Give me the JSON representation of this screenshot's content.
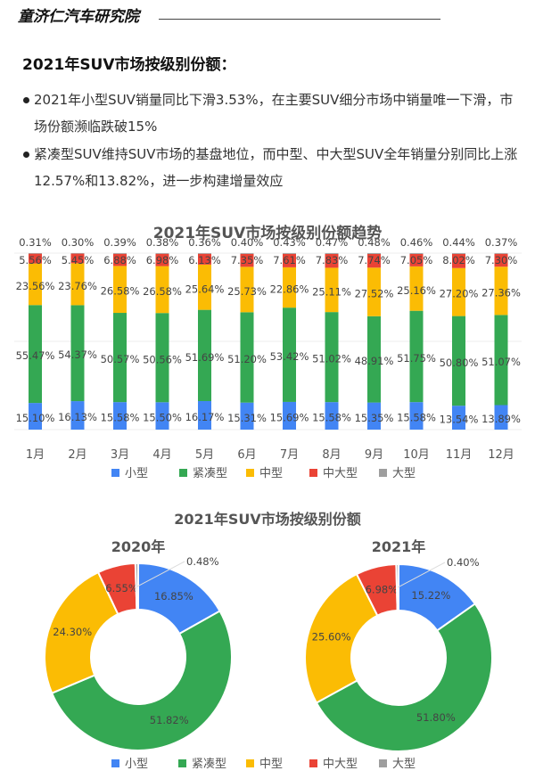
{
  "header": {
    "brand": "童济仁汽车研究院"
  },
  "section": {
    "title": "2021年SUV市场按级别份额：",
    "bullets": [
      "2021年小型SUV销量同比下滑3.53%，在主要SUV细分市场中销量唯一下滑，市场份额濒临跌破15%",
      "紧凑型SUV维持SUV市场的基盘地位，而中型、中大型SUV全年销量分别同比上涨12.57%和13.82%，进一步构建增量效应"
    ]
  },
  "colors": {
    "小型": "#4285F4",
    "紧凑型": "#34A853",
    "中型": "#FBBC04",
    "中大型": "#EA4335",
    "大型": "#9E9E9E"
  },
  "chart_data": [
    {
      "type": "bar",
      "stacked": true,
      "percent": true,
      "title": "2021年SUV市场按级别份额趋势",
      "categories": [
        "1月",
        "2月",
        "3月",
        "4月",
        "5月",
        "6月",
        "7月",
        "8月",
        "9月",
        "10月",
        "11月",
        "12月"
      ],
      "series": [
        {
          "name": "小型",
          "values": [
            15.1,
            16.13,
            15.58,
            15.5,
            16.17,
            15.31,
            15.69,
            15.58,
            15.35,
            15.58,
            13.54,
            13.89
          ]
        },
        {
          "name": "紧凑型",
          "values": [
            55.47,
            54.37,
            50.57,
            50.56,
            51.69,
            51.2,
            53.42,
            51.02,
            48.91,
            51.75,
            50.8,
            51.07
          ]
        },
        {
          "name": "中型",
          "values": [
            23.56,
            23.76,
            26.58,
            26.58,
            25.64,
            25.73,
            22.86,
            25.11,
            27.52,
            25.16,
            27.2,
            27.36
          ]
        },
        {
          "name": "中大型",
          "values": [
            5.56,
            5.45,
            6.88,
            6.98,
            6.13,
            7.35,
            7.61,
            7.83,
            7.74,
            7.05,
            8.02,
            7.3
          ]
        },
        {
          "name": "大型",
          "values": [
            0.31,
            0.3,
            0.39,
            0.38,
            0.36,
            0.4,
            0.43,
            0.47,
            0.48,
            0.46,
            0.44,
            0.37
          ]
        }
      ],
      "xlabel": "",
      "ylabel": "",
      "ylim": [
        0,
        100
      ],
      "grid": true,
      "legend_position": "bottom",
      "legend": [
        "小型",
        "紧凑型",
        "中型",
        "中大型",
        "大型"
      ]
    },
    {
      "type": "pie",
      "donut": true,
      "title": "2021年SUV市场按级别份额",
      "subtitle": "2020年",
      "labels": [
        "小型",
        "紧凑型",
        "中型",
        "中大型",
        "大型"
      ],
      "values": [
        16.85,
        51.82,
        24.3,
        6.55,
        0.48
      ],
      "legend_position": "bottom"
    },
    {
      "type": "pie",
      "donut": true,
      "title": "2021年SUV市场按级别份额",
      "subtitle": "2021年",
      "labels": [
        "小型",
        "紧凑型",
        "中型",
        "中大型",
        "大型"
      ],
      "values": [
        15.22,
        51.8,
        25.6,
        6.98,
        0.4
      ],
      "legend_position": "bottom"
    }
  ]
}
